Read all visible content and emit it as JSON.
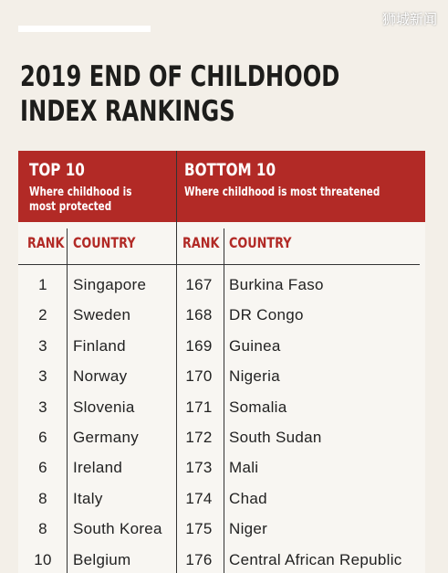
{
  "watermark": "狮城新闻",
  "title": [
    "2019 END OF CHILDHOOD",
    "INDEX RANKINGS"
  ],
  "tables": [
    {
      "heading": "TOP 10",
      "subheading": "Where childhood is most protected",
      "columns": [
        "RANK",
        "COUNTRY"
      ],
      "rows": [
        [
          "1",
          "Singapore"
        ],
        [
          "2",
          "Sweden"
        ],
        [
          "3",
          "Finland"
        ],
        [
          "3",
          "Norway"
        ],
        [
          "3",
          "Slovenia"
        ],
        [
          "6",
          "Germany"
        ],
        [
          "6",
          "Ireland"
        ],
        [
          "8",
          "Italy"
        ],
        [
          "8",
          "South Korea"
        ],
        [
          "10",
          "Belgium"
        ]
      ]
    },
    {
      "heading": "BOTTOM 10",
      "subheading": "Where childhood is most threatened",
      "columns": [
        "RANK",
        "COUNTRY"
      ],
      "rows": [
        [
          "167",
          "Burkina Faso"
        ],
        [
          "168",
          "DR Congo"
        ],
        [
          "169",
          "Guinea"
        ],
        [
          "170",
          "Nigeria"
        ],
        [
          "171",
          "Somalia"
        ],
        [
          "172",
          "South Sudan"
        ],
        [
          "173",
          "Mali"
        ],
        [
          "174",
          "Chad"
        ],
        [
          "175",
          "Niger"
        ],
        [
          "176",
          "Central African Republic"
        ]
      ]
    }
  ]
}
